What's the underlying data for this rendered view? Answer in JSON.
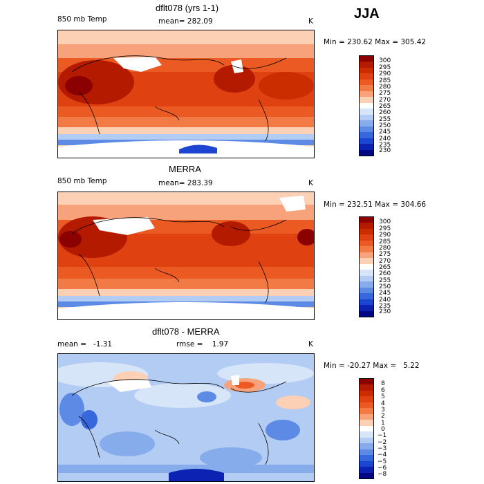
{
  "season": "JJA",
  "chart_data": [
    {
      "type": "heatmap",
      "title": "dflt078 (yrs 1-1)",
      "variable": "850 mb Temp",
      "stat_label": "mean= 282.09",
      "units": "K",
      "minmax": "Min = 230.62 Max = 305.42",
      "min": 230.62,
      "max": 305.42,
      "mean": 282.09,
      "colorbar_levels": [
        230,
        235,
        240,
        245,
        250,
        255,
        260,
        265,
        270,
        275,
        280,
        285,
        290,
        295,
        300
      ],
      "colorbar_labels": [
        "300",
        "295",
        "290",
        "285",
        "280",
        "275",
        "270",
        "265",
        "260",
        "255",
        "250",
        "245",
        "240",
        "235",
        "230"
      ]
    },
    {
      "type": "heatmap",
      "title": "MERRA",
      "variable": "850 mb Temp",
      "stat_label": "mean= 283.39",
      "units": "K",
      "minmax": "Min = 232.51 Max = 304.66",
      "min": 232.51,
      "max": 304.66,
      "mean": 283.39,
      "colorbar_levels": [
        230,
        235,
        240,
        245,
        250,
        255,
        260,
        265,
        270,
        275,
        280,
        285,
        290,
        295,
        300
      ],
      "colorbar_labels": [
        "300",
        "295",
        "290",
        "285",
        "280",
        "275",
        "270",
        "265",
        "260",
        "255",
        "250",
        "245",
        "240",
        "235",
        "230"
      ]
    },
    {
      "type": "heatmap",
      "title": "dflt078 - MERRA",
      "stat_label": "mean =   -1.31",
      "stat_label2": "rmse =    1.97",
      "units": "K",
      "minmax": "Min = -20.27 Max =   5.22",
      "min": -20.27,
      "max": 5.22,
      "mean": -1.31,
      "rmse": 1.97,
      "colorbar_levels": [
        -8,
        -6,
        -5,
        -4,
        -3,
        -2,
        -1,
        0,
        1,
        2,
        3,
        4,
        5,
        6,
        8
      ],
      "colorbar_labels": [
        "8",
        "6",
        "5",
        "4",
        "3",
        "2",
        "1",
        "0",
        "−1",
        "−2",
        "−3",
        "−4",
        "−5",
        "−6",
        "−8"
      ]
    }
  ],
  "colors": {
    "warm_scale": [
      "#8b0000",
      "#b31a00",
      "#cc2d00",
      "#df4210",
      "#ea5a22",
      "#f27a45",
      "#f7a27a",
      "#fbd0b4",
      "#ffffff",
      "#d7e5f8",
      "#b3ccf3",
      "#86acec",
      "#5c8ae4",
      "#3667dc",
      "#1c45d1",
      "#0c22b3",
      "#020884"
    ],
    "diff_scale": [
      "#8b0000",
      "#b31a00",
      "#cc2d00",
      "#df4210",
      "#ea5a22",
      "#f27a45",
      "#f7a27a",
      "#fbd0b4",
      "#ffffff",
      "#d7e5f8",
      "#b3ccf3",
      "#86acec",
      "#5c8ae4",
      "#3667dc",
      "#1c45d1",
      "#0c22b3",
      "#020884"
    ]
  }
}
